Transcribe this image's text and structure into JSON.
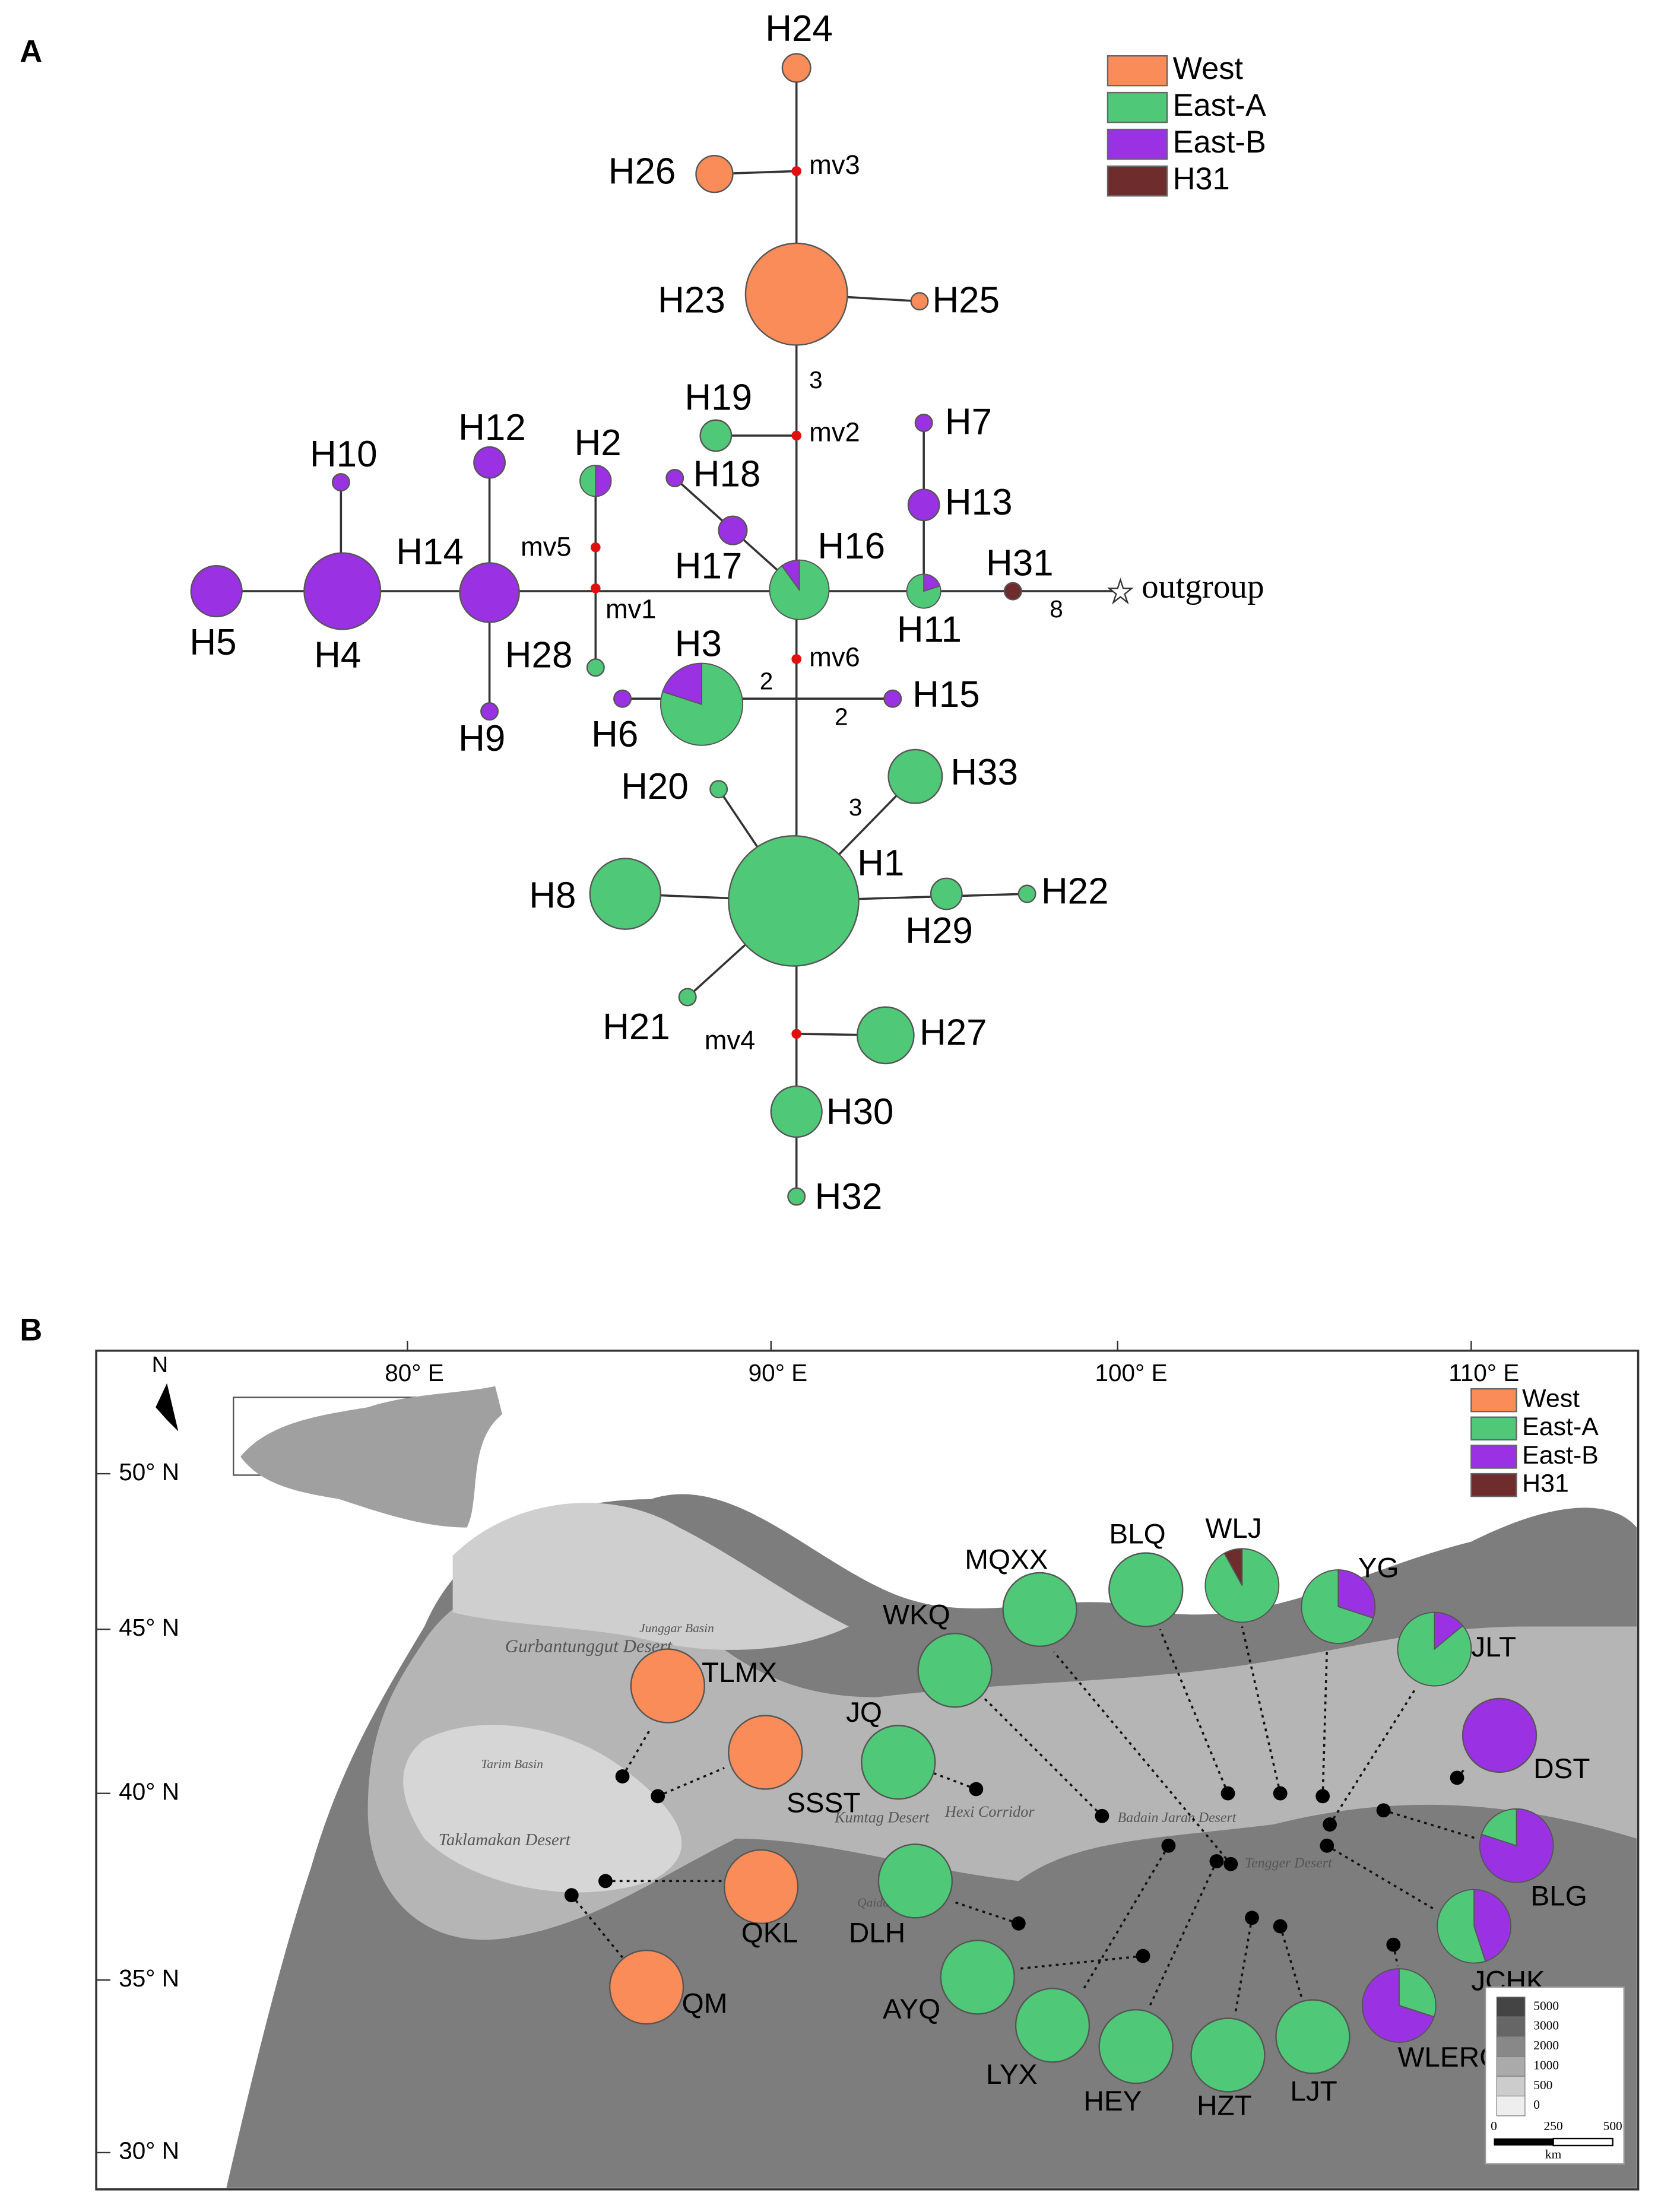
{
  "panel_a": {
    "label": "A",
    "legend": [
      "West",
      "East-A",
      "East-B",
      "H31"
    ],
    "nodes": [
      "H24",
      "H26",
      "H23",
      "H25",
      "H19",
      "H7",
      "H18",
      "H13",
      "H2",
      "H12",
      "H10",
      "H17",
      "H16",
      "H14",
      "H4",
      "H5",
      "H11",
      "H31",
      "H28",
      "H3",
      "H6",
      "H15",
      "H9",
      "H33",
      "H20",
      "H1",
      "H8",
      "H29",
      "H22",
      "H21",
      "H27",
      "H30",
      "H32"
    ],
    "median_vectors": [
      "mv3",
      "mv2",
      "mv5",
      "mv1",
      "mv6",
      "mv4"
    ],
    "mutation_counts": [
      "3",
      "8",
      "2",
      "2",
      "3"
    ],
    "outgroup": "outgroup"
  },
  "panel_b": {
    "label": "B",
    "legend": [
      "West",
      "East-A",
      "East-B",
      "H31"
    ],
    "longitudes": [
      "80° E",
      "90° E",
      "100° E",
      "110° E"
    ],
    "latitudes": [
      "50° N",
      "45° N",
      "40° N",
      "35° N",
      "30° N"
    ],
    "north": "N",
    "places": [
      "Junggar Basin",
      "Gurbantunggut Desert",
      "Tarim Basin",
      "Taklamakan Desert",
      "Kumtag Desert",
      "Hexi Corridor",
      "Badain Jaran Desert",
      "Tengger Desert",
      "Qaidam Basin"
    ],
    "populations": [
      "TLMX",
      "SSST",
      "QKL",
      "QM",
      "JQ",
      "WKQ",
      "MQXX",
      "BLQ",
      "WLJ",
      "YG",
      "JLT",
      "DST",
      "BLG",
      "JCHK",
      "WLERG",
      "LJT",
      "HZT",
      "HEY",
      "LYX",
      "AYQ",
      "DLH"
    ],
    "elevation_legend": [
      "5000",
      "3000",
      "2000",
      "1000",
      "500",
      "0"
    ],
    "scale_bar": [
      "0",
      "250",
      "500"
    ],
    "scale_unit": "km"
  }
}
